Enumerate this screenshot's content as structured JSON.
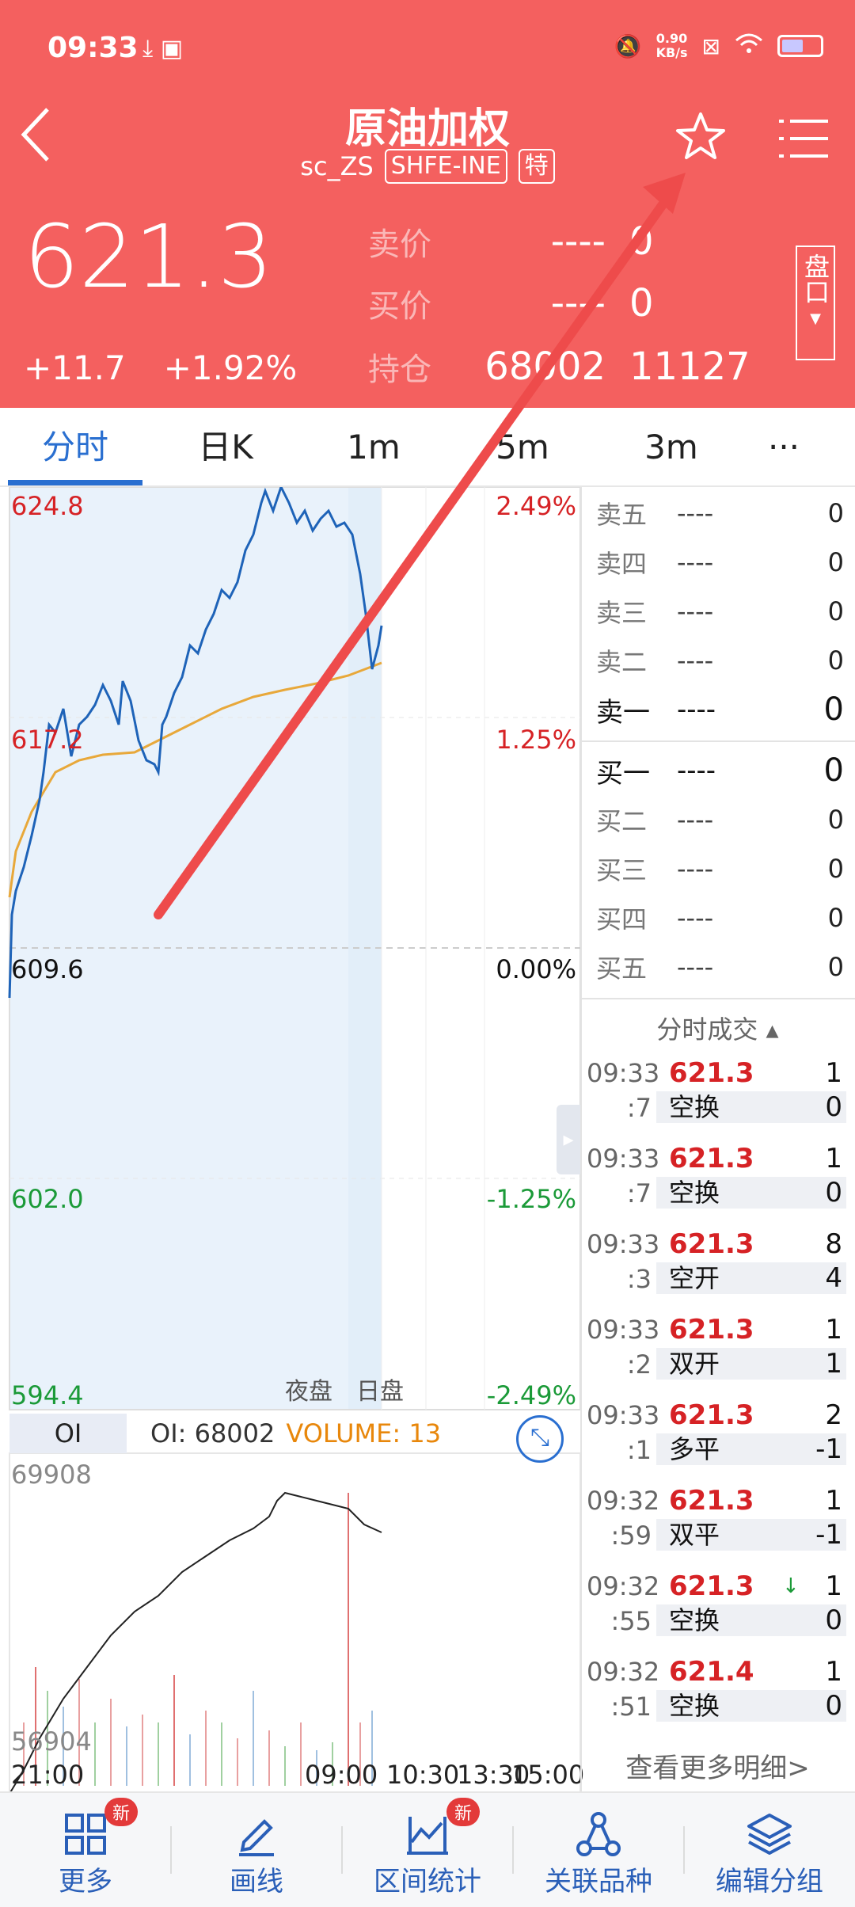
{
  "status": {
    "time": "09:33",
    "net_speed_top": "0.90",
    "net_speed_bottom": "KB/s"
  },
  "header": {
    "title": "原油加权",
    "symbol": "sc_ZS",
    "exchange": "SHFE-INE",
    "special_tag": "特",
    "last_price": "621.3",
    "change": "+11.7",
    "change_pct": "+1.92%",
    "ask_label": "卖价",
    "ask_price": "----",
    "ask_vol": "0",
    "bid_label": "买价",
    "bid_price": "----",
    "bid_vol": "0",
    "oi_label": "持仓",
    "oi_value": "68002",
    "oi_change": "11127",
    "pankou_label": "盘口"
  },
  "tabs": [
    {
      "label": "分时"
    },
    {
      "label": "日K"
    },
    {
      "label": "1m"
    },
    {
      "label": "5m"
    },
    {
      "label": "3m"
    },
    {
      "label": "···"
    }
  ],
  "price_axis": {
    "p1": "624.8",
    "p2": "617.2",
    "p3": "609.6",
    "p4": "602.0",
    "p5": "594.4",
    "pct1": "2.49%",
    "pct2": "1.25%",
    "pct3": "0.00%",
    "pct4": "-1.25%",
    "pct5": "-2.49%"
  },
  "sessions": {
    "night": "夜盘",
    "day": "日盘"
  },
  "oi_panel": {
    "tab": "OI",
    "oi_text": "OI: 68002",
    "volume_text": "VOLUME: 13",
    "max": "69908",
    "min": "56904"
  },
  "time_axis": {
    "t1": "21:00",
    "t2": "09:00",
    "t3": "10:30",
    "t4": "13:30",
    "t5": "15:00"
  },
  "order_book": {
    "asks": [
      {
        "label": "卖五",
        "price": "----",
        "vol": "0"
      },
      {
        "label": "卖四",
        "price": "----",
        "vol": "0"
      },
      {
        "label": "卖三",
        "price": "----",
        "vol": "0"
      },
      {
        "label": "卖二",
        "price": "----",
        "vol": "0"
      },
      {
        "label": "卖一",
        "price": "----",
        "vol": "0"
      }
    ],
    "bids": [
      {
        "label": "买一",
        "price": "----",
        "vol": "0"
      },
      {
        "label": "买二",
        "price": "----",
        "vol": "0"
      },
      {
        "label": "买三",
        "price": "----",
        "vol": "0"
      },
      {
        "label": "买四",
        "price": "----",
        "vol": "0"
      },
      {
        "label": "买五",
        "price": "----",
        "vol": "0"
      }
    ]
  },
  "ticks_header": "分时成交 ▴",
  "ticks": [
    {
      "time": "09:33",
      "sec": ":7",
      "price": "621.3",
      "vol": "1",
      "type": "空换",
      "chg": "0"
    },
    {
      "time": "09:33",
      "sec": ":7",
      "price": "621.3",
      "vol": "1",
      "type": "空换",
      "chg": "0"
    },
    {
      "time": "09:33",
      "sec": ":3",
      "price": "621.3",
      "vol": "8",
      "type": "空开",
      "chg": "4"
    },
    {
      "time": "09:33",
      "sec": ":2",
      "price": "621.3",
      "vol": "1",
      "type": "双开",
      "chg": "1"
    },
    {
      "time": "09:33",
      "sec": ":1",
      "price": "621.3",
      "vol": "2",
      "type": "多平",
      "chg": "-1"
    },
    {
      "time": "09:32",
      "sec": ":59",
      "price": "621.3",
      "vol": "1",
      "type": "双平",
      "chg": "-1"
    },
    {
      "time": "09:32",
      "sec": ":55",
      "price": "621.3",
      "vol": "1",
      "type": "空换",
      "chg": "0"
    },
    {
      "time": "09:32",
      "sec": ":51",
      "price": "621.4",
      "vol": "1",
      "type": "空换",
      "chg": "0"
    }
  ],
  "more_link": "查看更多明细>",
  "bottom_nav": [
    {
      "label": "更多",
      "badge": "新"
    },
    {
      "label": "画线"
    },
    {
      "label": "区间统计",
      "badge": "新"
    },
    {
      "label": "关联品种"
    },
    {
      "label": "编辑分组"
    }
  ],
  "colors": {
    "header_bg": "#f4605f",
    "accent_blue": "#2a6fd0",
    "up_red": "#d62225",
    "down_green": "#1b9a38",
    "avg_line": "#e8a83a",
    "volume_orange": "#e8870b"
  }
}
